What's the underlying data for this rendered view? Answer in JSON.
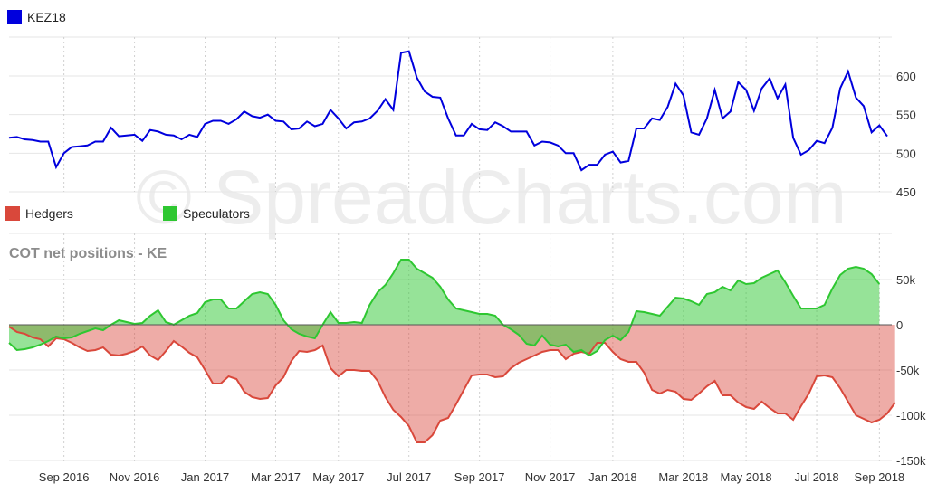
{
  "watermark": "© SpreadCharts.com",
  "chart_data": [
    {
      "type": "line",
      "name": "price",
      "legend": [
        {
          "label": "KEZ18",
          "color": "#0000dd"
        }
      ],
      "ylim": [
        450,
        640
      ],
      "yticks": [
        450,
        500,
        550,
        600
      ],
      "series": [
        {
          "name": "KEZ18",
          "color": "#0000dd",
          "values": [
            520,
            521,
            518,
            517,
            515,
            515,
            482,
            500,
            508,
            509,
            510,
            515,
            515,
            533,
            522,
            523,
            524,
            516,
            530,
            528,
            524,
            523,
            518,
            524,
            521,
            538,
            542,
            542,
            538,
            544,
            554,
            548,
            546,
            550,
            542,
            541,
            531,
            532,
            541,
            535,
            538,
            556,
            545,
            532,
            540,
            541,
            545,
            555,
            570,
            556,
            630,
            632,
            598,
            580,
            573,
            572,
            545,
            523,
            523,
            538,
            531,
            530,
            540,
            535,
            528,
            528,
            528,
            510,
            515,
            514,
            510,
            500,
            500,
            478,
            485,
            485,
            498,
            502,
            488,
            490,
            532,
            532,
            545,
            543,
            560,
            590,
            575,
            527,
            524,
            545,
            582,
            545,
            554,
            592,
            582,
            555,
            584,
            597,
            571,
            589,
            520,
            498,
            504,
            516,
            513,
            533,
            584,
            606,
            572,
            561,
            527,
            536,
            522
          ]
        }
      ]
    },
    {
      "type": "area",
      "name": "cot",
      "title": "COT net positions - KE",
      "legend": [
        {
          "label": "Hedgers",
          "color": "#d9483b"
        },
        {
          "label": "Speculators",
          "color": "#2ec731"
        }
      ],
      "ylim": [
        -150000,
        90000
      ],
      "yticks": [
        -150000,
        -100000,
        -50000,
        0,
        50000
      ],
      "ytick_labels": [
        "-150k",
        "-100k",
        "-50k",
        "0",
        "50k"
      ],
      "x_labels": [
        "Sep 2016",
        "Nov 2016",
        "Jan 2017",
        "Mar 2017",
        "May 2017",
        "Jul 2017",
        "Sep 2017",
        "Nov 2017",
        "Jan 2018",
        "Mar 2018",
        "May 2018",
        "Jul 2018",
        "Sep 2018"
      ],
      "x_label_index": [
        7,
        16,
        25,
        34,
        42,
        51,
        60,
        69,
        77,
        86,
        94,
        103,
        111
      ],
      "series": [
        {
          "name": "Hedgers",
          "color": "#d9483b",
          "values": [
            -2000,
            -8000,
            -10000,
            -14000,
            -16000,
            -24000,
            -15000,
            -16000,
            -20000,
            -25000,
            -29000,
            -28000,
            -25000,
            -33000,
            -34000,
            -32000,
            -29000,
            -24000,
            -34000,
            -39000,
            -29000,
            -18000,
            -24000,
            -31000,
            -36000,
            -50000,
            -65000,
            -65000,
            -57000,
            -60000,
            -74000,
            -80000,
            -82000,
            -81000,
            -67000,
            -58000,
            -40000,
            -29000,
            -30000,
            -28000,
            -23000,
            -48000,
            -57000,
            -50000,
            -50000,
            -51000,
            -51000,
            -62000,
            -80000,
            -94000,
            -102000,
            -112000,
            -130000,
            -130000,
            -122000,
            -106000,
            -103000,
            -88000,
            -72000,
            -56000,
            -55000,
            -55000,
            -58000,
            -57000,
            -48000,
            -42000,
            -38000,
            -34000,
            -30000,
            -28000,
            -28000,
            -38000,
            -32000,
            -30000,
            -32000,
            -20000,
            -20000,
            -30000,
            -38000,
            -41000,
            -41000,
            -53000,
            -72000,
            -76000,
            -72000,
            -74000,
            -82000,
            -83000,
            -76000,
            -68000,
            -62000,
            -78000,
            -78000,
            -86000,
            -91000,
            -93000,
            -85000,
            -92000,
            -98000,
            -98000,
            -105000,
            -90000,
            -76000,
            -57000,
            -56000,
            -58000,
            -70000,
            -85000,
            -100000,
            -104000,
            -108000,
            -105000,
            -98000,
            -86000
          ]
        },
        {
          "name": "Speculators",
          "color": "#2ec731",
          "values": [
            -20000,
            -28000,
            -27000,
            -25000,
            -22000,
            -18000,
            -13000,
            -15000,
            -14000,
            -10000,
            -7000,
            -4000,
            -6000,
            0,
            5000,
            3000,
            1000,
            2000,
            10000,
            16000,
            3000,
            0,
            5000,
            10000,
            13000,
            25000,
            28000,
            28000,
            18000,
            18000,
            26000,
            34000,
            36000,
            34000,
            22000,
            5000,
            -5000,
            -10000,
            -13000,
            -15000,
            0,
            14000,
            2000,
            2000,
            3000,
            2000,
            22000,
            36000,
            44000,
            57000,
            72000,
            72000,
            62000,
            57000,
            52000,
            42000,
            28000,
            18000,
            16000,
            14000,
            12000,
            12000,
            10000,
            0,
            -5000,
            -11000,
            -21000,
            -23000,
            -12000,
            -22000,
            -24000,
            -22000,
            -30000,
            -28000,
            -34000,
            -29000,
            -17000,
            -12000,
            -17000,
            -8000,
            15000,
            14000,
            12000,
            10000,
            20000,
            30000,
            29000,
            26000,
            22000,
            34000,
            36000,
            42000,
            38000,
            49000,
            45000,
            46000,
            52000,
            56000,
            60000,
            47000,
            32000,
            18000,
            18000,
            18000,
            22000,
            40000,
            55000,
            62000,
            64000,
            62000,
            56000,
            45000
          ]
        }
      ]
    }
  ]
}
